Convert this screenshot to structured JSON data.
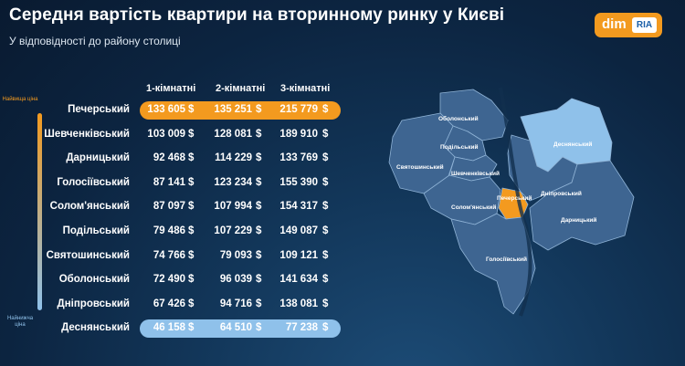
{
  "header": {
    "title": "Середня вартість квартири на вторинному ринку у Києві",
    "subtitle": "У відповідності до району столиці"
  },
  "logo": {
    "dim": "dim",
    "ria": "RIA"
  },
  "scale": {
    "top_label": "Найвища ціна",
    "bottom_label": "Найнижча ціна"
  },
  "colors": {
    "orange": "#f39a1f",
    "light_blue": "#8fc1ea",
    "map_district": "#3e6591",
    "map_border": "#8fb3d6"
  },
  "chart_data": {
    "type": "table",
    "title": "Середня вартість квартири на вторинному ринку у Києві",
    "subtitle": "У відповідності до району столиці",
    "columns": [
      "1-кімнатні",
      "2-кімнатні",
      "3-кімнатні"
    ],
    "unit": "$",
    "rows": [
      {
        "district": "Печерський",
        "values": [
          "133 605",
          "135 251",
          "215 779"
        ],
        "highlight": "max"
      },
      {
        "district": "Шевченківський",
        "values": [
          "103 009",
          "128 081",
          "189 910"
        ]
      },
      {
        "district": "Дарницький",
        "values": [
          "92 468",
          "114 229",
          "133 769"
        ]
      },
      {
        "district": "Голосіївський",
        "values": [
          "87 141",
          "123 234",
          "155 390"
        ]
      },
      {
        "district": "Солом'янський",
        "values": [
          "87 097",
          "107 994",
          "154 317"
        ]
      },
      {
        "district": "Подільський",
        "values": [
          "79 486",
          "107 229",
          "149 087"
        ]
      },
      {
        "district": "Святошинський",
        "values": [
          "74 766",
          "79 093",
          "109 121"
        ]
      },
      {
        "district": "Оболонський",
        "values": [
          "72 490",
          "96 039",
          "141 634"
        ]
      },
      {
        "district": "Дніпровський",
        "values": [
          "67 426",
          "94 716",
          "138 081"
        ]
      },
      {
        "district": "Деснянський",
        "values": [
          "46 158",
          "64 510",
          "77 238"
        ],
        "highlight": "min"
      }
    ]
  },
  "map": {
    "labels": [
      {
        "key": "obolonskyi",
        "text": "Оболонський"
      },
      {
        "key": "desnianskyi",
        "text": "Деснянський"
      },
      {
        "key": "podilskyi",
        "text": "Подільський"
      },
      {
        "key": "sviatoshynskyi",
        "text": "Святошинський"
      },
      {
        "key": "shevchenkivskyi",
        "text": "Шевченківський"
      },
      {
        "key": "dniprovskyi",
        "text": "Дніпровський"
      },
      {
        "key": "pecherskyi",
        "text": "Печерський"
      },
      {
        "key": "solomianskyi",
        "text": "Солом'янський"
      },
      {
        "key": "darnytskyi",
        "text": "Дарницький"
      },
      {
        "key": "holosiivskyi",
        "text": "Голосіївський"
      }
    ]
  }
}
